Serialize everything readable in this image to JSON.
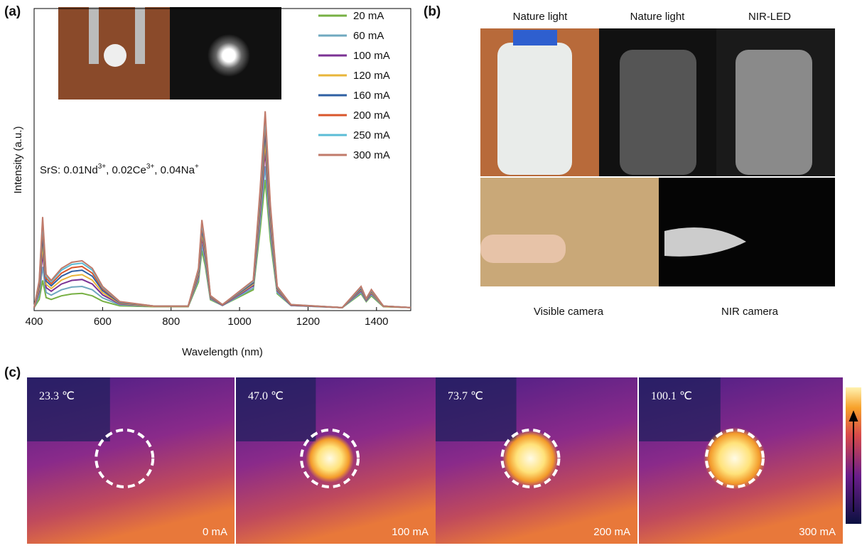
{
  "chart_data": {
    "type": "line",
    "panel_label": "(a)",
    "x_label": "Wavelength (nm)",
    "y_label": "Intensity (a.u.)",
    "annotation": [
      "SrS: 0.01Nd",
      "3+",
      ", 0.02Ce",
      "3+",
      ", 0.04Na",
      "+"
    ],
    "x": [
      400,
      415,
      425,
      435,
      450,
      480,
      510,
      540,
      570,
      600,
      650,
      750,
      850,
      880,
      890,
      900,
      915,
      950,
      1040,
      1060,
      1075,
      1090,
      1110,
      1150,
      1300,
      1355,
      1370,
      1385,
      1420,
      1500
    ],
    "xlim": [
      400,
      1500
    ],
    "xticks": [
      400,
      600,
      800,
      1000,
      1200,
      1400
    ],
    "ylim": [
      0,
      100
    ],
    "series": [
      {
        "name": "20 mA",
        "color": "#77b043",
        "values": [
          1,
          3.7,
          10,
          4.3,
          3.7,
          4.9,
          5.5,
          5.7,
          4.9,
          3.1,
          1.6,
          1.3,
          1.3,
          9.5,
          19.9,
          14.7,
          3.6,
          1.7,
          6.9,
          26.4,
          43.3,
          23.1,
          5.6,
          1.7,
          1,
          5.6,
          3,
          4.9,
          1.3,
          1
        ]
      },
      {
        "name": "60 mA",
        "color": "#6fa8bf",
        "values": [
          1,
          5.1,
          14.5,
          6,
          5.1,
          6.9,
          7.8,
          8,
          6.9,
          4.2,
          1.9,
          1.4,
          1.4,
          10.4,
          21.9,
          16.1,
          3.9,
          1.7,
          7.5,
          29.1,
          47.8,
          25.5,
          6,
          1.7,
          1,
          6,
          3.2,
          5.3,
          1.4,
          1
        ]
      },
      {
        "name": "100 mA",
        "color": "#7b3294",
        "values": [
          1,
          6.4,
          19,
          7.6,
          6.4,
          8.8,
          10,
          10.3,
          8.8,
          5.2,
          2.2,
          1.4,
          1.4,
          11.4,
          24.2,
          17.8,
          4.2,
          1.8,
          8.2,
          32.2,
          53,
          28.2,
          6.6,
          1.8,
          1,
          6.6,
          3.4,
          5.8,
          1.4,
          1
        ]
      },
      {
        "name": "120 mA",
        "color": "#e8b53a",
        "values": [
          1,
          7.3,
          22,
          8.7,
          7.3,
          10.1,
          11.5,
          11.9,
          10.1,
          5.9,
          2.4,
          1.4,
          1.4,
          12.1,
          25.7,
          18.9,
          4.4,
          1.9,
          8.7,
          34.2,
          56.3,
          29.9,
          7,
          1.9,
          1,
          7,
          3.6,
          6.1,
          1.4,
          1
        ]
      },
      {
        "name": "160 mA",
        "color": "#2e5fa3",
        "values": [
          1,
          8.2,
          25,
          9.8,
          8.2,
          11.4,
          13,
          13.4,
          11.4,
          6.6,
          2.6,
          1.5,
          1.5,
          12.7,
          27.1,
          19.9,
          4.6,
          1.9,
          9.1,
          36.1,
          59.5,
          31.6,
          7.3,
          1.9,
          1,
          7.3,
          3.7,
          6.4,
          1.5,
          1
        ]
      },
      {
        "name": "200 mA",
        "color": "#d9562b",
        "values": [
          1,
          8.9,
          27.4,
          10.7,
          8.9,
          12.4,
          14.2,
          14.6,
          12.4,
          7.2,
          2.8,
          1.5,
          1.5,
          13.2,
          28.3,
          20.7,
          4.8,
          1.9,
          9.5,
          37.7,
          62.1,
          33,
          7.6,
          1.9,
          1,
          7.6,
          3.8,
          6.6,
          1.5,
          1
        ]
      },
      {
        "name": "250 mA",
        "color": "#5bbcd6",
        "values": [
          1,
          9.6,
          29.5,
          11.5,
          9.6,
          13.4,
          15.3,
          15.7,
          13.4,
          7.7,
          2.9,
          1.5,
          1.5,
          13.6,
          29.1,
          21.4,
          4.9,
          2,
          9.7,
          38.8,
          64.1,
          34,
          7.8,
          2,
          1,
          7.8,
          3.9,
          6.8,
          1.5,
          1
        ]
      },
      {
        "name": "300 mA",
        "color": "#c07a6a",
        "values": [
          1,
          10,
          31,
          12,
          10,
          14,
          16,
          16.5,
          14,
          8,
          3,
          1.5,
          1.5,
          14,
          30,
          22,
          5,
          2,
          10,
          40,
          66,
          35,
          8,
          2,
          1,
          8,
          4,
          7,
          1.5,
          1
        ]
      }
    ]
  },
  "panel_b": {
    "label": "(b)",
    "top_labels": [
      "Nature light",
      "Nature light",
      "NIR-LED"
    ],
    "bottom_labels": [
      "Visible camera",
      "NIR camera"
    ]
  },
  "panel_c": {
    "label": "(c)",
    "temperatures": [
      "23.3 ℃",
      "47.0 ℃",
      "73.7 ℃",
      "100.1 ℃"
    ],
    "currents": [
      "0 mA",
      "100 mA",
      "200 mA",
      "300 mA"
    ]
  }
}
